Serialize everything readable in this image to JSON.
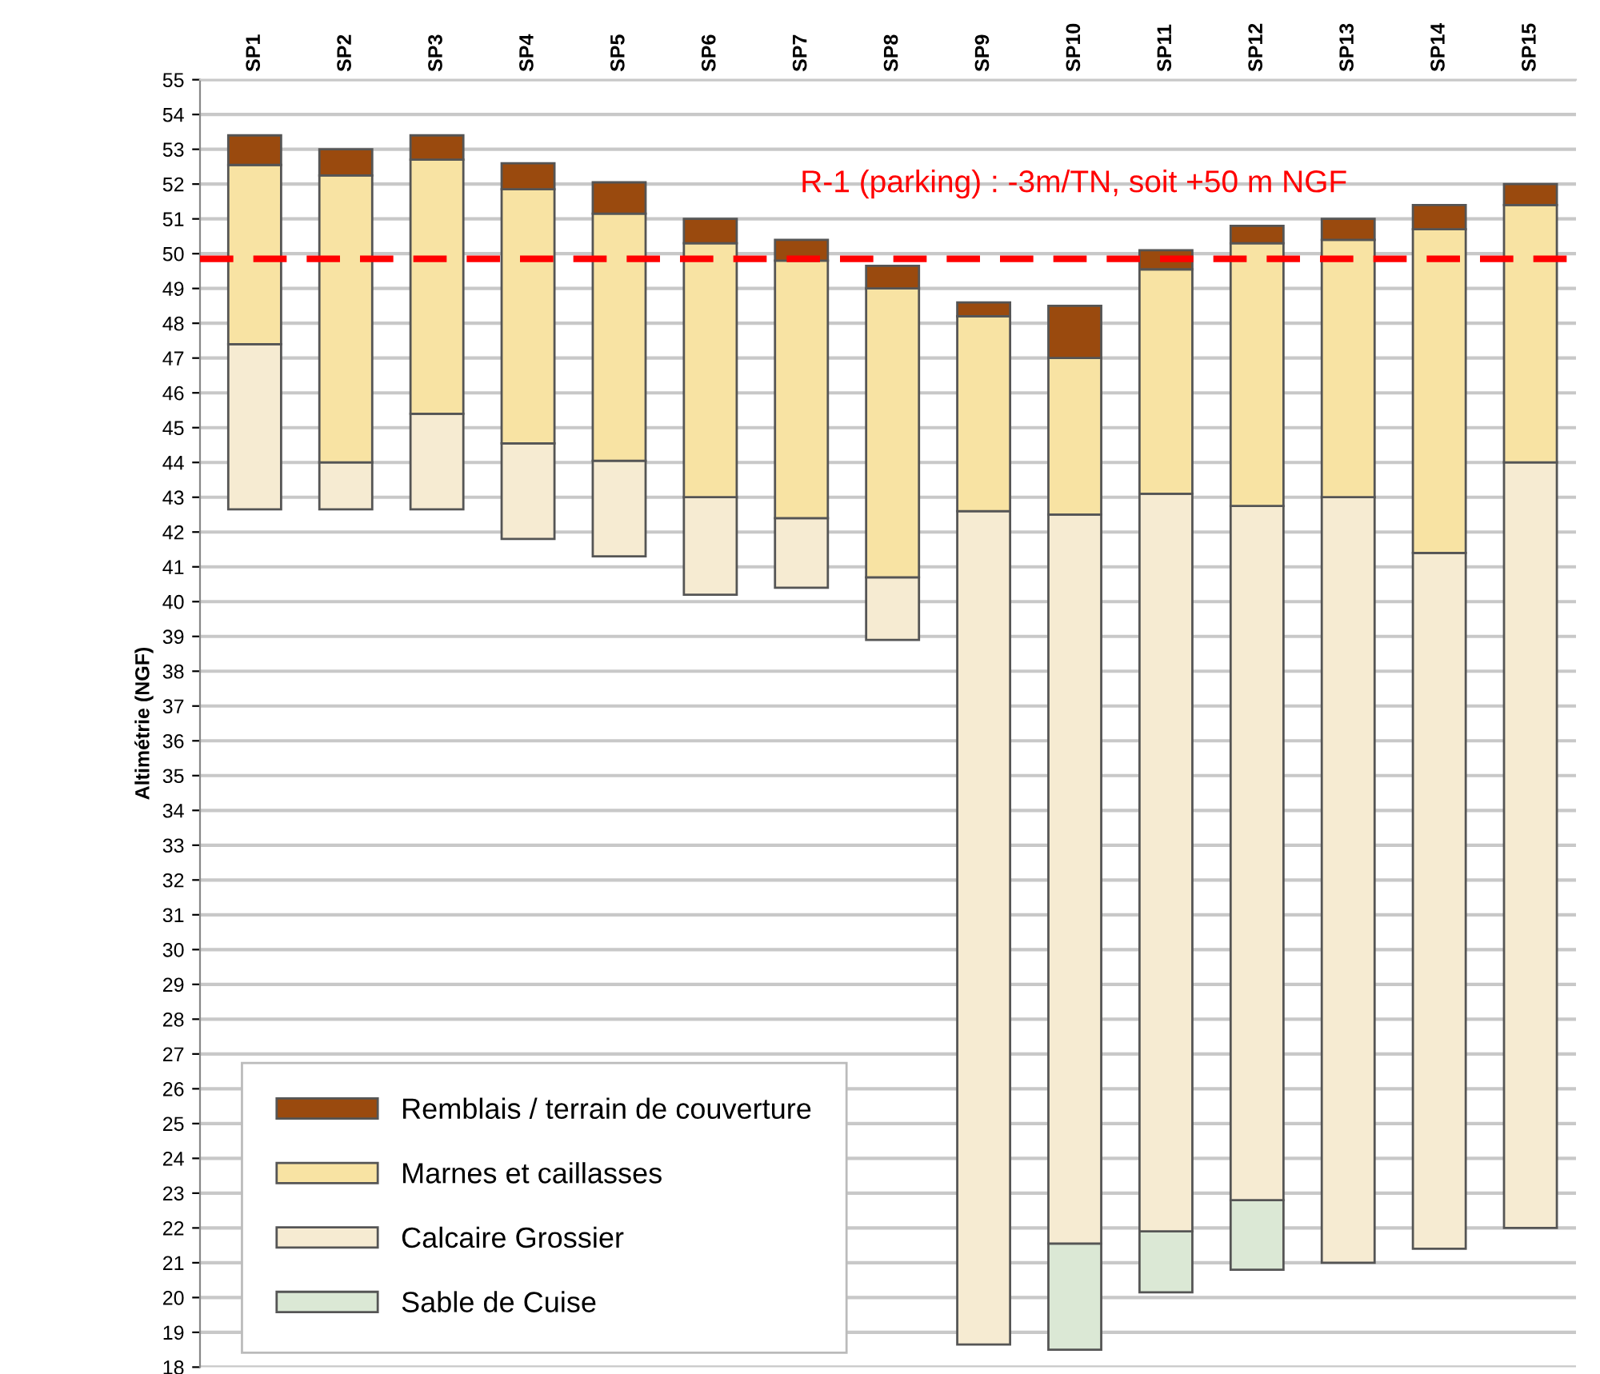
{
  "chart_data": {
    "type": "bar",
    "ylabel": "Altimétrie (NGF)",
    "categories": [
      "SP1",
      "SP2",
      "SP3",
      "SP4",
      "SP5",
      "SP6",
      "SP7",
      "SP8",
      "SP9",
      "SP10",
      "SP11",
      "SP12",
      "SP13",
      "SP14",
      "SP15"
    ],
    "series": [
      {
        "name": "Sable de Cuise",
        "color": "#dbe8d5",
        "base": [
          null,
          null,
          null,
          null,
          null,
          null,
          null,
          null,
          null,
          18.5,
          20.15,
          20.8,
          null,
          null,
          null
        ],
        "values": [
          null,
          null,
          null,
          null,
          null,
          null,
          null,
          null,
          null,
          3.05,
          1.75,
          2.0,
          null,
          null,
          null
        ]
      },
      {
        "name": "Calcaire Grossier",
        "color": "#f6ebd2",
        "base": [
          42.65,
          42.65,
          42.65,
          41.8,
          41.3,
          40.2,
          40.4,
          38.9,
          18.65,
          21.55,
          21.9,
          22.8,
          21.0,
          21.4,
          22.0
        ],
        "values": [
          4.75,
          1.35,
          2.75,
          2.75,
          2.75,
          2.8,
          2.0,
          1.8,
          23.95,
          20.95,
          21.2,
          19.95,
          22.0,
          20.0,
          22.0
        ]
      },
      {
        "name": "Marnes et caillasses",
        "color": "#f8e3a3",
        "base": [
          47.4,
          44.0,
          45.4,
          44.55,
          44.05,
          43.0,
          42.4,
          40.7,
          42.6,
          42.5,
          43.1,
          42.75,
          43.0,
          41.4,
          44.0
        ],
        "values": [
          5.15,
          8.25,
          7.3,
          7.3,
          7.1,
          7.3,
          7.4,
          8.3,
          5.6,
          4.5,
          6.45,
          7.55,
          7.4,
          9.3,
          7.4
        ]
      },
      {
        "name": "Remblais / terrain de couverture",
        "color": "#9a4a0e",
        "base": [
          52.55,
          52.25,
          52.7,
          51.85,
          51.15,
          50.3,
          49.8,
          49.0,
          48.2,
          47.0,
          49.55,
          50.3,
          50.4,
          50.7,
          51.4
        ],
        "values": [
          0.85,
          0.75,
          0.7,
          0.75,
          0.9,
          0.7,
          0.6,
          0.65,
          0.4,
          1.5,
          0.55,
          0.5,
          0.6,
          0.7,
          0.6
        ]
      }
    ],
    "ylim": [
      18,
      55
    ],
    "yticks": [
      18,
      19,
      20,
      21,
      22,
      23,
      24,
      25,
      26,
      27,
      28,
      29,
      30,
      31,
      32,
      33,
      34,
      35,
      36,
      37,
      38,
      39,
      40,
      41,
      42,
      43,
      44,
      45,
      46,
      47,
      48,
      49,
      50,
      51,
      52,
      53,
      54,
      55
    ],
    "grid": "y",
    "legend": "bottom left",
    "ref_lines": [
      {
        "axis": "y",
        "value": 49.85,
        "label": "R-1 (parking) : -3m/TN, soit +50 m NGF",
        "color": "#ff0000",
        "line_style": "dashed"
      }
    ]
  }
}
